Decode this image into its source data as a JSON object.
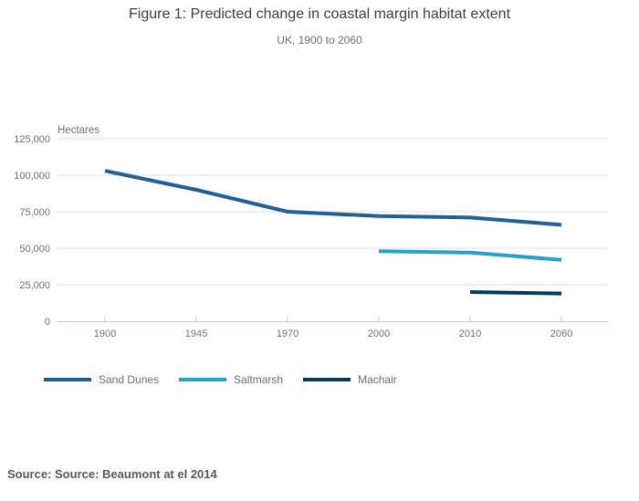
{
  "header": {
    "title": "Figure 1: Predicted change in coastal margin habitat extent",
    "subtitle": "UK, 1900 to 2060"
  },
  "footer": {
    "source": "Source: Source: Beaumont at el 2014"
  },
  "chart_data": {
    "type": "line",
    "title": "Figure 1: Predicted change in coastal margin habitat extent",
    "subtitle": "UK, 1900 to 2060",
    "ylabel": "Hectares",
    "xlabel": "",
    "categories": [
      "1900",
      "1945",
      "1970",
      "2000",
      "2010",
      "2060"
    ],
    "ylim": [
      0,
      125000
    ],
    "grid": true,
    "legend_position": "bottom-left",
    "yticks": [
      {
        "value": 0,
        "label": "0"
      },
      {
        "value": 25000,
        "label": "25,000"
      },
      {
        "value": 50000,
        "label": "50,000"
      },
      {
        "value": 75000,
        "label": "75,000"
      },
      {
        "value": 100000,
        "label": "100,000"
      },
      {
        "value": 125000,
        "label": "125,000"
      }
    ],
    "series": [
      {
        "name": "Sand Dunes",
        "color": "#206095",
        "values": [
          103000,
          90000,
          75000,
          72000,
          71000,
          66000
        ]
      },
      {
        "name": "Saltmarsh",
        "color": "#27A0CC",
        "values": [
          null,
          null,
          null,
          48000,
          47000,
          42000
        ]
      },
      {
        "name": "Machair",
        "color": "#003C57",
        "values": [
          null,
          null,
          null,
          null,
          20000,
          19000
        ]
      }
    ],
    "source": "Source: Source: Beaumont at el 2014"
  }
}
